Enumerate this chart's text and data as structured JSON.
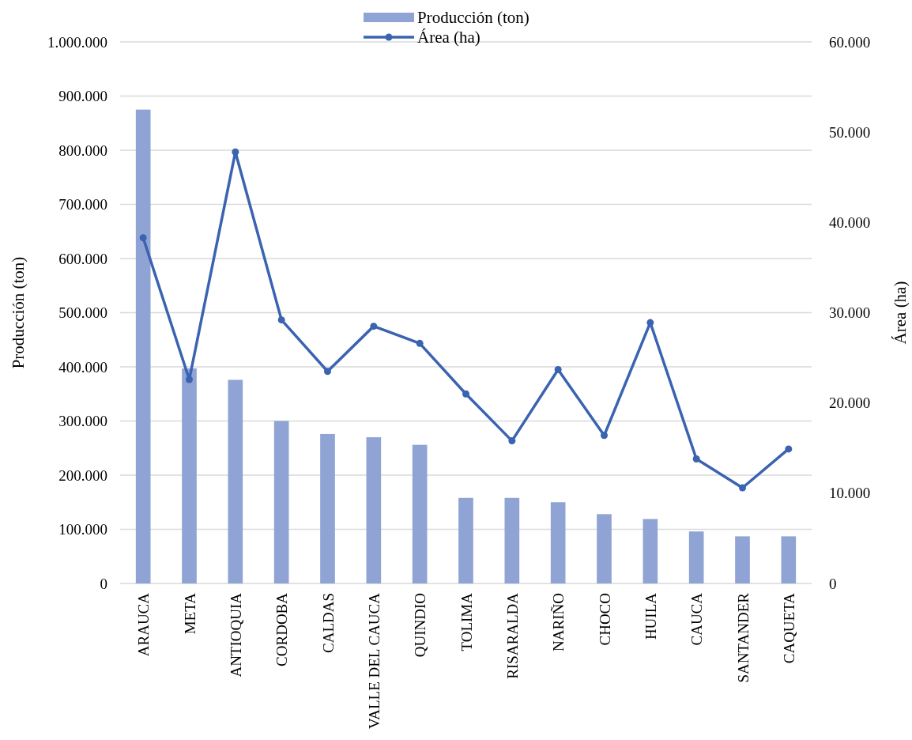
{
  "chart_data": {
    "type": "bar",
    "ylabel": "Producción (ton)",
    "y2label": "Área (ha)",
    "categories": [
      "ARAUCA",
      "META",
      "ANTIOQUIA",
      "CORDOBA",
      "CALDAS",
      "VALLE DEL CAUCA",
      "QUINDIO",
      "TOLIMA",
      "RISARALDA",
      "NARIÑO",
      "CHOCO",
      "HUILA",
      "CAUCA",
      "SANTANDER",
      "CAQUETA"
    ],
    "series": [
      {
        "name": "Producción (ton)",
        "color": "#8fa3d4",
        "values": [
          875000,
          397000,
          376000,
          300000,
          276000,
          270000,
          256000,
          158000,
          158000,
          150000,
          128000,
          119000,
          96000,
          87000,
          87000
        ]
      },
      {
        "name": "Área (ha)",
        "type": "line",
        "axis": "y2",
        "color": "#3a63b0",
        "marker": "circle",
        "values": [
          38300,
          22600,
          47800,
          29200,
          23500,
          28500,
          26600,
          21000,
          15800,
          23700,
          16400,
          28900,
          13800,
          10600,
          14900
        ]
      }
    ],
    "ylim": [
      0,
      1000000
    ],
    "yticks": [
      {
        "value": 0,
        "label": "0"
      },
      {
        "value": 100000,
        "label": "100.000"
      },
      {
        "value": 200000,
        "label": "200.000"
      },
      {
        "value": 300000,
        "label": "300.000"
      },
      {
        "value": 400000,
        "label": "400.000"
      },
      {
        "value": 500000,
        "label": "500.000"
      },
      {
        "value": 600000,
        "label": "600.000"
      },
      {
        "value": 700000,
        "label": "700.000"
      },
      {
        "value": 800000,
        "label": "800.000"
      },
      {
        "value": 900000,
        "label": "900.000"
      },
      {
        "value": 1000000,
        "label": "1.000.000"
      }
    ],
    "y2lim": [
      0,
      60000
    ],
    "y2ticks": [
      {
        "value": 0,
        "label": "0"
      },
      {
        "value": 10000,
        "label": "10.000"
      },
      {
        "value": 20000,
        "label": "20.000"
      },
      {
        "value": 30000,
        "label": "30.000"
      },
      {
        "value": 40000,
        "label": "40.000"
      },
      {
        "value": 50000,
        "label": "50.000"
      },
      {
        "value": 60000,
        "label": "60.000"
      }
    ],
    "grid": "y",
    "legend": "top"
  }
}
